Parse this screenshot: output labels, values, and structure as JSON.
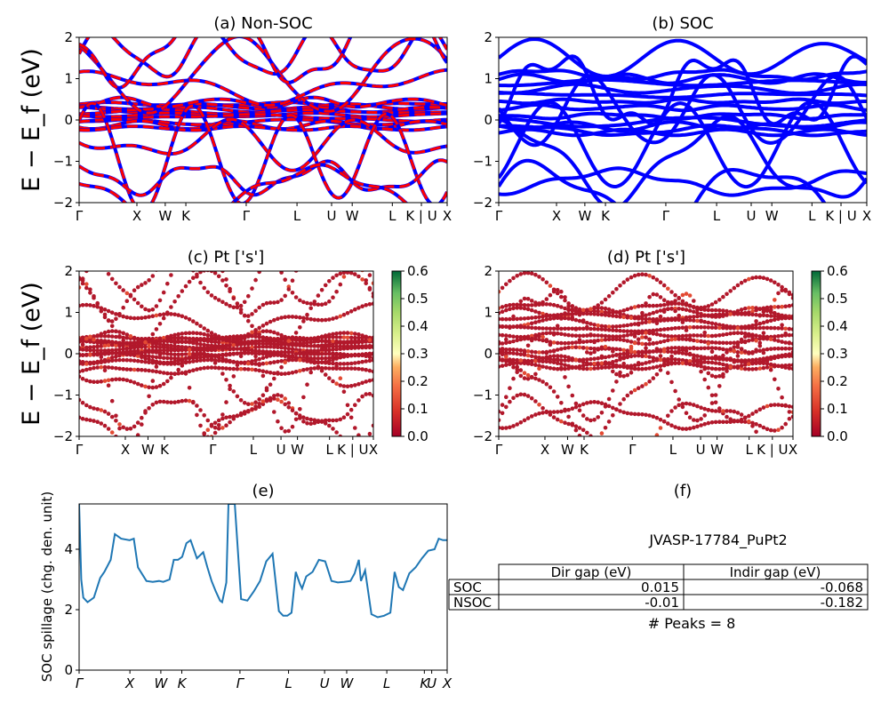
{
  "figure_id": "JVASP-17784_PuPt2",
  "chart_data": [
    {
      "panel": "a",
      "type": "line",
      "title": "(a) Non-SOC",
      "ylabel": "E − E_f (eV)",
      "ylim": [
        -2,
        2
      ],
      "yticks": [
        "2",
        "1",
        "0",
        "−1",
        "−2"
      ],
      "xticks": [
        "Γ",
        "X",
        "W",
        "K",
        "Γ",
        "L",
        "U",
        "W",
        "L",
        "K | U",
        "X"
      ],
      "series": [
        {
          "color": "#0000ff",
          "style": "solid",
          "values": [
            0.05,
            0.3,
            0.35,
            0.28,
            0.2,
            0.1,
            -0.1,
            -0.15,
            -0.2,
            0.1
          ]
        },
        {
          "color": "#ff0000",
          "style": "dashed",
          "values": [
            0.05,
            0.3,
            0.35,
            0.28,
            0.2,
            0.1,
            -0.1,
            -0.15,
            -0.2,
            0.1
          ]
        }
      ]
    },
    {
      "panel": "b",
      "type": "line",
      "title": "(b) SOC",
      "ylim": [
        -2,
        2
      ],
      "yticks": [
        "2",
        "1",
        "0",
        "−1",
        "−2"
      ],
      "xticks": [
        "Γ",
        "X",
        "W",
        "K",
        "Γ",
        "L",
        "U",
        "W",
        "L",
        "K | U",
        "X"
      ],
      "series": [
        {
          "color": "#0000ff"
        }
      ]
    },
    {
      "panel": "c",
      "type": "scatter",
      "title": "(c)  Pt ['s']",
      "ylabel": "E − E_f (eV)",
      "ylim": [
        -2,
        2
      ],
      "yticks": [
        "2",
        "1",
        "0",
        "−1",
        "−2"
      ],
      "xticks": [
        "Γ",
        "X",
        "W",
        "K",
        "Γ",
        "L",
        "U",
        "W",
        "L",
        "K | U",
        "X"
      ],
      "colorbar": {
        "range": [
          0.0,
          0.6
        ],
        "ticks": [
          "0.6",
          "0.5",
          "0.4",
          "0.3",
          "0.2",
          "0.1",
          "0.0"
        ]
      }
    },
    {
      "panel": "d",
      "type": "scatter",
      "title": "(d) Pt ['s']",
      "ylim": [
        -2,
        2
      ],
      "yticks": [
        "2",
        "1",
        "0",
        "−1",
        "−2"
      ],
      "xticks": [
        "Γ",
        "X",
        "W",
        "K",
        "Γ",
        "L",
        "U",
        "W",
        "L",
        "K | U",
        "X"
      ],
      "colorbar": {
        "range": [
          0.0,
          0.6
        ],
        "ticks": [
          "0.6",
          "0.5",
          "0.4",
          "0.3",
          "0.2",
          "0.1",
          "0.0"
        ]
      }
    },
    {
      "panel": "e",
      "type": "line",
      "title": "(e)",
      "ylabel": "SOC spillage (chg. den. unit)",
      "ylim": [
        0,
        5.5
      ],
      "yticks": [
        "0",
        "2",
        "4"
      ],
      "xticks": [
        "Γ",
        "X",
        "W",
        "K",
        "Γ",
        "L",
        "U",
        "W",
        "L",
        "K",
        "U",
        "X"
      ],
      "color": "#1f77b4",
      "x": [
        0,
        1,
        2,
        4,
        7,
        10,
        12,
        15,
        17,
        20,
        24,
        26,
        28,
        32,
        35,
        38,
        40,
        43,
        45,
        47,
        49,
        51,
        53,
        56,
        59,
        61,
        63,
        65,
        67,
        68,
        70,
        71,
        74,
        77,
        80,
        83,
        86,
        89,
        92,
        95,
        97,
        99,
        101,
        103,
        105,
        106,
        108,
        111,
        114,
        117,
        120,
        123,
        126,
        129,
        131,
        133,
        134,
        136,
        139,
        142,
        145,
        148,
        150,
        152,
        154,
        157,
        160,
        163,
        166,
        169,
        171,
        173,
        175
      ],
      "y": [
        5.5,
        3.0,
        2.4,
        2.25,
        2.4,
        3.05,
        3.25,
        3.65,
        4.5,
        4.35,
        4.3,
        4.35,
        3.4,
        2.95,
        2.92,
        2.95,
        2.92,
        3.0,
        3.65,
        3.65,
        3.75,
        4.2,
        4.3,
        3.7,
        3.9,
        3.4,
        2.95,
        2.6,
        2.3,
        2.25,
        2.9,
        5.5,
        5.5,
        2.35,
        2.3,
        2.6,
        2.95,
        3.6,
        3.85,
        1.95,
        1.8,
        1.8,
        1.9,
        3.25,
        2.85,
        2.7,
        3.1,
        3.25,
        3.65,
        3.6,
        2.95,
        2.9,
        2.92,
        2.95,
        3.2,
        3.65,
        2.95,
        3.3,
        1.85,
        1.75,
        1.8,
        1.9,
        3.25,
        2.75,
        2.65,
        3.2,
        3.4,
        3.7,
        3.95,
        4.0,
        4.35,
        4.3,
        4.3
      ]
    },
    {
      "panel": "f",
      "type": "table",
      "title": "(f)",
      "id_label": "JVASP-17784_PuPt2",
      "columns": [
        "Dir gap (eV)",
        "Indir gap (eV)"
      ],
      "rows": [
        {
          "label": "SOC",
          "cells": [
            "0.015",
            "-0.068"
          ]
        },
        {
          "label": "NSOC",
          "cells": [
            "-0.01",
            "-0.182"
          ]
        }
      ],
      "peaks": "# Peaks = 8"
    }
  ]
}
